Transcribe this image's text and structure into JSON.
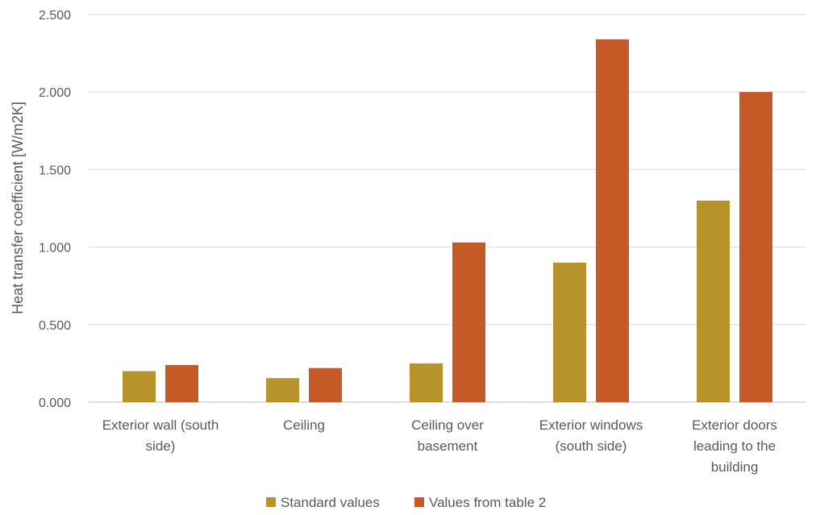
{
  "chart_data": {
    "type": "bar",
    "title": "",
    "xlabel": "",
    "ylabel": "Heat transfer coefficient [W/m2K]",
    "ylim": [
      0,
      2.5
    ],
    "yticks": [
      "0.000",
      "0.500",
      "1.000",
      "1.500",
      "2.000",
      "2.500"
    ],
    "ytick_values": [
      0,
      0.5,
      1.0,
      1.5,
      2.0,
      2.5
    ],
    "grid": true,
    "legend_position": "bottom",
    "categories": [
      [
        "Exterior wall (south",
        "side)"
      ],
      [
        "Ceiling"
      ],
      [
        "Ceiling over",
        "basement"
      ],
      [
        "Exterior windows",
        "(south side)"
      ],
      [
        "Exterior doors",
        "leading to the",
        "building"
      ]
    ],
    "series": [
      {
        "name": "Standard values",
        "color": "#b8922b",
        "values": [
          0.2,
          0.155,
          0.25,
          0.9,
          1.3
        ]
      },
      {
        "name": "Values from table 2",
        "color": "#c55a27",
        "values": [
          0.24,
          0.22,
          1.03,
          2.34,
          2.0
        ]
      }
    ]
  }
}
